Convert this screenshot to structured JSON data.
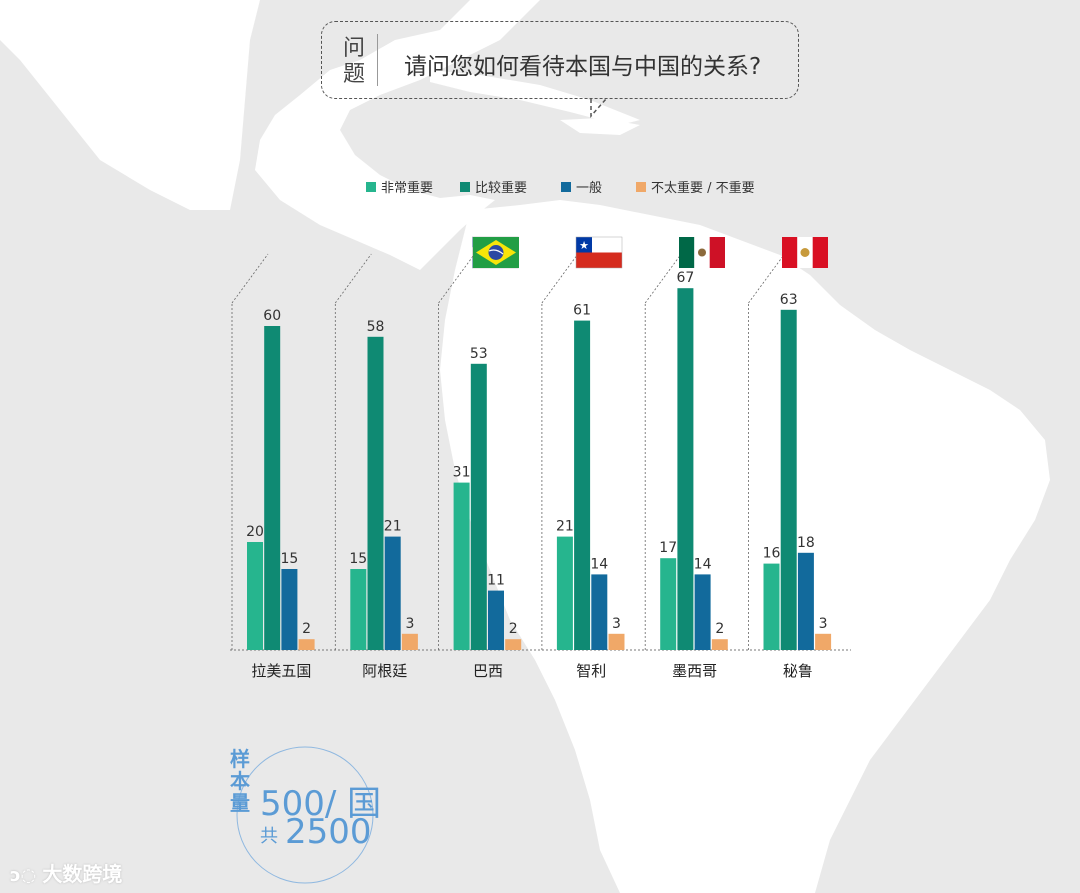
{
  "question": {
    "label": "问题",
    "text": "请问您如何看待本国与中国的关系?"
  },
  "colors": {
    "very_important": "#26b58e",
    "relatively_important": "#0f8a73",
    "average": "#126a9c",
    "not_important": "#f0a868",
    "map_land": "#ffffff",
    "background": "#e9e9e9",
    "sample_text": "#5b9bd5"
  },
  "legend": [
    {
      "label": "非常重要",
      "color": "#26b58e"
    },
    {
      "label": "比较重要",
      "color": "#0f8a73"
    },
    {
      "label": "一般",
      "color": "#126a9c"
    },
    {
      "label": "不太重要 / 不重要",
      "color": "#f0a868"
    }
  ],
  "chart_data": {
    "type": "bar",
    "title": "",
    "xlabel": "",
    "ylabel": "",
    "grid": false,
    "legend_position": "top",
    "categories": [
      "拉美五国",
      "阿根廷",
      "巴西",
      "智利",
      "墨西哥",
      "秘鲁"
    ],
    "flags": [
      "",
      "argentina-flag",
      "brazil-flag",
      "chile-flag",
      "mexico-flag",
      "peru-flag"
    ],
    "ylim": [
      0,
      70
    ],
    "series": [
      {
        "name": "非常重要",
        "values": [
          20,
          15,
          31,
          21,
          17,
          16
        ]
      },
      {
        "name": "比较重要",
        "values": [
          60,
          58,
          53,
          61,
          67,
          63
        ]
      },
      {
        "name": "一般",
        "values": [
          15,
          21,
          11,
          14,
          14,
          18
        ]
      },
      {
        "name": "不太重要 / 不重要",
        "values": [
          2,
          3,
          2,
          3,
          2,
          3
        ]
      }
    ]
  },
  "sample": {
    "label": "样本量",
    "value_line1": "500/ 国",
    "prefix": "共",
    "value_line2": "2500"
  },
  "watermark": {
    "text": "大数跨境",
    "icon": "logo-icon"
  }
}
